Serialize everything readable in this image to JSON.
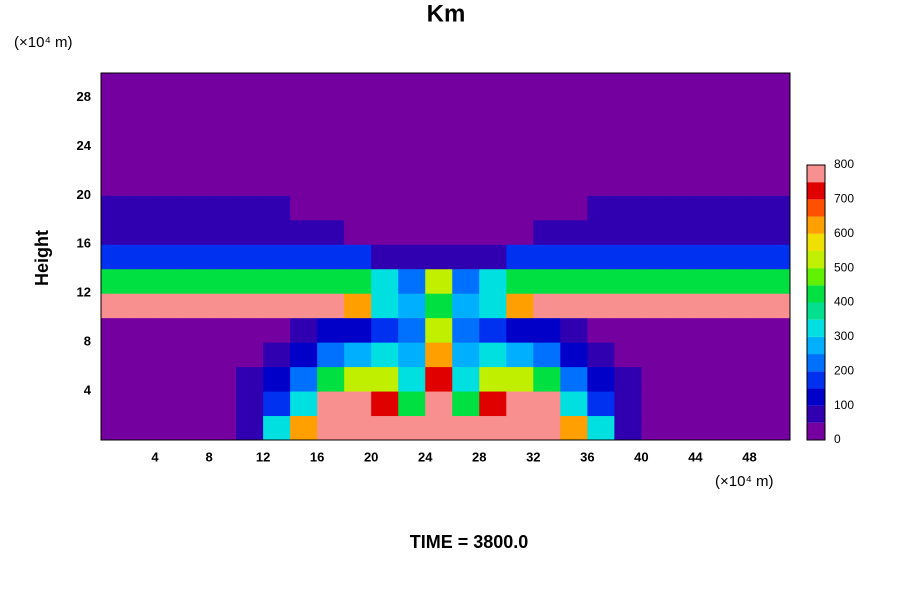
{
  "chart_data": {
    "type": "contour",
    "title": "Km",
    "subtitle": "TIME = 3800.0",
    "x_label": "(×10⁴ m)",
    "y_label": "Height",
    "y_unit_label": "(×10⁴ m)",
    "xlim": [
      0,
      51
    ],
    "ylim": [
      0,
      30
    ],
    "xticks": [
      4,
      8,
      12,
      16,
      20,
      24,
      28,
      32,
      36,
      40,
      44,
      48
    ],
    "yticks": [
      4,
      8,
      12,
      16,
      20,
      24,
      28
    ],
    "x": [
      1,
      3,
      5,
      7,
      9,
      11,
      13,
      15,
      17,
      19,
      21,
      23,
      25,
      27,
      29,
      31,
      33,
      35,
      37,
      39,
      41,
      43,
      45,
      47,
      49,
      51
    ],
    "y": [
      1,
      3,
      5,
      7,
      9,
      11,
      13,
      15,
      17,
      19,
      21,
      23,
      25,
      27,
      29
    ],
    "z": [
      [
        0,
        0,
        0,
        0,
        0,
        50,
        300,
        600,
        800,
        800,
        800,
        800,
        800,
        800,
        800,
        800,
        800,
        600,
        300,
        50,
        0,
        0,
        0,
        0,
        0,
        0
      ],
      [
        0,
        0,
        0,
        0,
        0,
        50,
        150,
        300,
        800,
        800,
        700,
        400,
        800,
        400,
        700,
        800,
        800,
        300,
        150,
        50,
        0,
        0,
        0,
        0,
        0,
        0
      ],
      [
        0,
        0,
        0,
        0,
        0,
        50,
        100,
        200,
        400,
        500,
        500,
        300,
        700,
        300,
        500,
        500,
        400,
        200,
        100,
        50,
        0,
        0,
        0,
        0,
        0,
        0
      ],
      [
        0,
        0,
        0,
        0,
        0,
        0,
        50,
        100,
        200,
        250,
        300,
        250,
        600,
        250,
        300,
        250,
        200,
        100,
        50,
        0,
        0,
        0,
        0,
        0,
        0,
        0
      ],
      [
        0,
        0,
        0,
        0,
        0,
        0,
        0,
        50,
        100,
        100,
        150,
        200,
        500,
        200,
        150,
        100,
        100,
        50,
        0,
        0,
        0,
        0,
        0,
        0,
        0,
        0
      ],
      [
        800,
        800,
        800,
        800,
        800,
        800,
        800,
        800,
        800,
        600,
        300,
        250,
        400,
        250,
        300,
        600,
        800,
        800,
        800,
        800,
        800,
        800,
        800,
        800,
        800,
        800
      ],
      [
        400,
        400,
        400,
        400,
        400,
        400,
        400,
        400,
        400,
        400,
        300,
        200,
        500,
        200,
        300,
        400,
        400,
        400,
        400,
        400,
        400,
        400,
        400,
        400,
        400,
        400
      ],
      [
        150,
        150,
        150,
        150,
        150,
        150,
        150,
        150,
        150,
        150,
        50,
        50,
        50,
        50,
        50,
        150,
        150,
        150,
        150,
        150,
        150,
        150,
        150,
        150,
        150,
        150
      ],
      [
        80,
        80,
        80,
        80,
        80,
        80,
        80,
        80,
        80,
        20,
        20,
        20,
        20,
        20,
        20,
        20,
        80,
        80,
        80,
        80,
        80,
        80,
        80,
        80,
        80,
        80
      ],
      [
        50,
        50,
        50,
        50,
        50,
        50,
        50,
        0,
        0,
        0,
        0,
        0,
        0,
        0,
        0,
        0,
        0,
        0,
        50,
        50,
        50,
        50,
        50,
        50,
        50,
        50
      ],
      [
        0,
        0,
        0,
        0,
        0,
        0,
        0,
        0,
        0,
        0,
        0,
        0,
        0,
        0,
        0,
        0,
        0,
        0,
        0,
        0,
        0,
        0,
        0,
        0,
        0,
        0
      ],
      [
        0,
        0,
        0,
        0,
        0,
        0,
        0,
        0,
        0,
        0,
        0,
        0,
        0,
        0,
        0,
        0,
        0,
        0,
        0,
        0,
        0,
        0,
        0,
        0,
        0,
        0
      ],
      [
        0,
        0,
        0,
        0,
        0,
        0,
        0,
        0,
        0,
        0,
        0,
        0,
        0,
        0,
        0,
        0,
        0,
        0,
        0,
        0,
        0,
        0,
        0,
        0,
        0,
        0
      ],
      [
        0,
        0,
        0,
        0,
        0,
        0,
        0,
        0,
        0,
        0,
        0,
        0,
        0,
        0,
        0,
        0,
        0,
        0,
        0,
        0,
        0,
        0,
        0,
        0,
        0,
        0
      ],
      [
        0,
        0,
        0,
        0,
        0,
        0,
        0,
        0,
        0,
        0,
        0,
        0,
        0,
        0,
        0,
        0,
        0,
        0,
        0,
        0,
        0,
        0,
        0,
        0,
        0,
        0
      ]
    ],
    "levels": [
      0,
      50,
      100,
      150,
      200,
      250,
      300,
      350,
      400,
      450,
      500,
      550,
      600,
      650,
      700,
      750,
      800
    ],
    "colors": [
      "#7400a0",
      "#3000b0",
      "#0000c8",
      "#0030f0",
      "#0070ff",
      "#00b0ff",
      "#00e0e0",
      "#00e090",
      "#00e040",
      "#60f000",
      "#c0f000",
      "#f0e000",
      "#ffa000",
      "#ff5000",
      "#e00000",
      "#f89090"
    ],
    "colorbar_lim": [
      0,
      800
    ],
    "colorbar_ticks": [
      0,
      100,
      200,
      300,
      400,
      500,
      600,
      700,
      800
    ]
  }
}
